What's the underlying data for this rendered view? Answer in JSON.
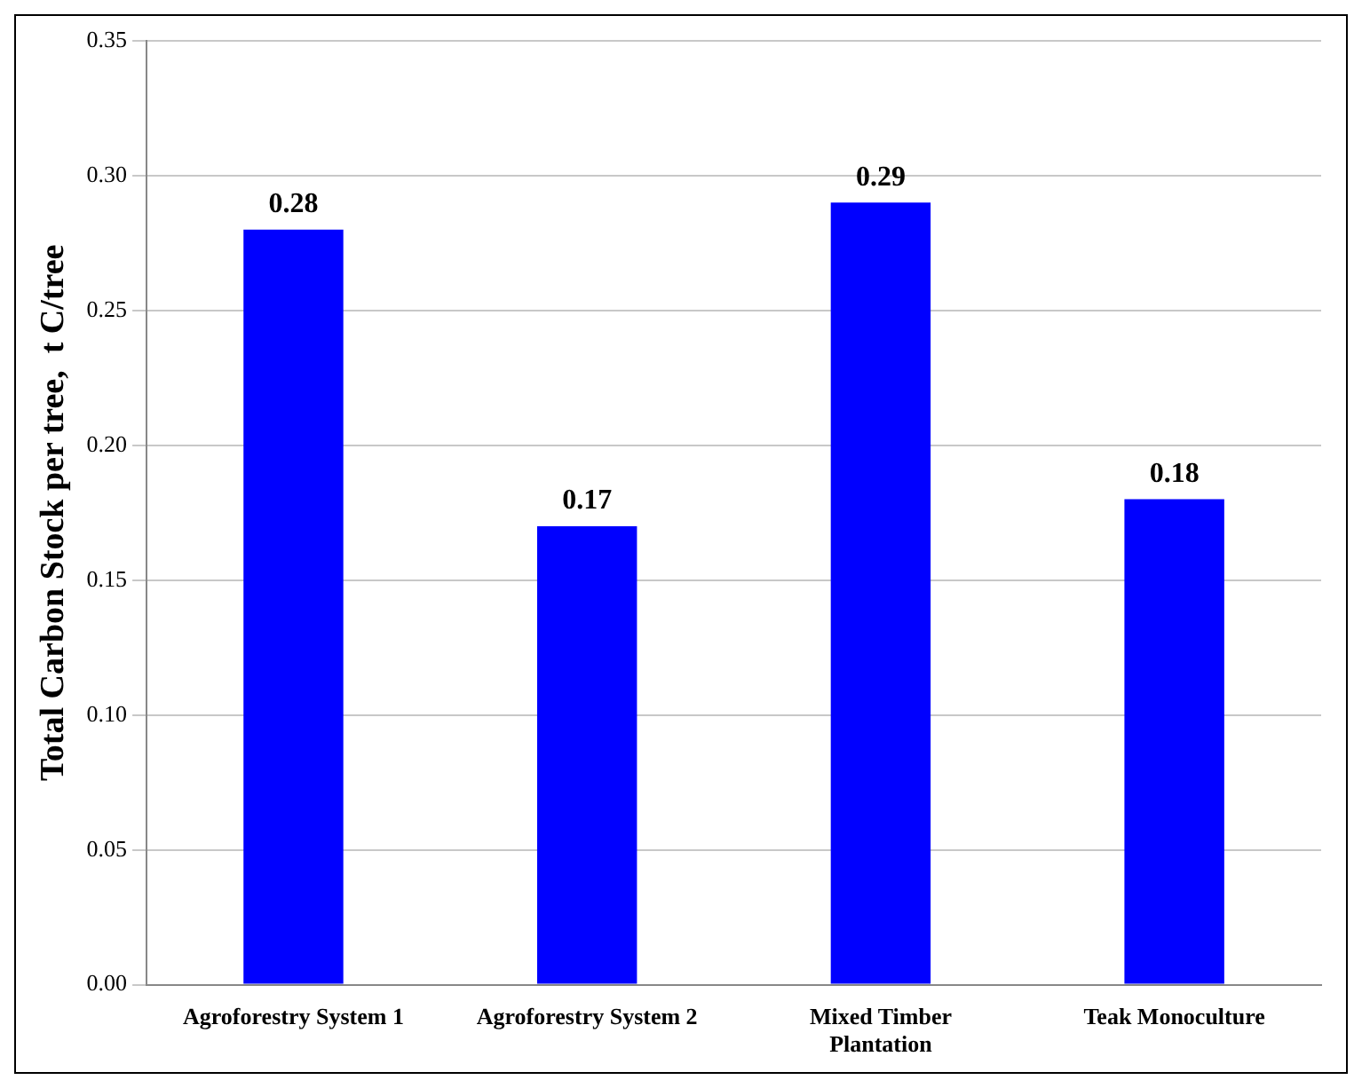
{
  "chart_data": {
    "type": "bar",
    "ylabel": "Total Carbon Stock per tree,  t C/tree",
    "categories": [
      "Agroforestry System 1",
      "Agroforestry System 2",
      "Mixed Timber Plantation",
      "Teak Monoculture"
    ],
    "values": [
      0.28,
      0.17,
      0.29,
      0.18
    ],
    "color": "#0000ff",
    "ylim": [
      0,
      0.35
    ],
    "yticks": [
      {
        "value": 0,
        "label": "0.00"
      },
      {
        "value": 0.05,
        "label": "0.05"
      },
      {
        "value": 0.1,
        "label": "0.10"
      },
      {
        "value": 0.15,
        "label": "0.15"
      },
      {
        "value": 0.2,
        "label": "0.20"
      },
      {
        "value": 0.25,
        "label": "0.25"
      },
      {
        "value": 0.3,
        "label": "0.30"
      },
      {
        "value": 0.35,
        "label": "0.35"
      }
    ],
    "grid": "y",
    "data_labels": true,
    "legend": false
  }
}
